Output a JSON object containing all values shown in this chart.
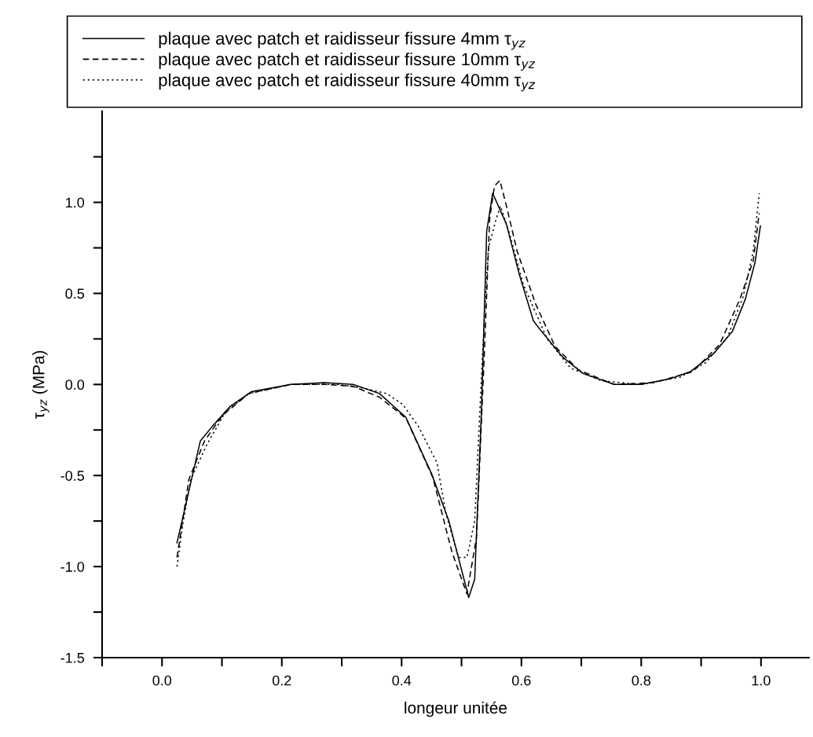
{
  "chart_data": {
    "type": "line",
    "xlabel": "longeur unitée",
    "ylabel": "τ$_{yz}$ (MPa)",
    "xlim": [
      -0.1,
      1.08
    ],
    "ylim": [
      -1.5,
      1.5
    ],
    "xticks": [
      {
        "value": -0.1,
        "label": null
      },
      {
        "value": 0,
        "label": "0.0"
      },
      {
        "value": 0.1,
        "label": null
      },
      0.2,
      {
        "value": 0.3,
        "label": null
      },
      0.4,
      {
        "value": 0.5,
        "label": null
      },
      0.6,
      {
        "value": 0.7,
        "label": null
      },
      0.8,
      {
        "value": 0.9,
        "label": null
      },
      {
        "value": 1,
        "label": "1.0"
      }
    ],
    "yticks": [
      -1.5,
      {
        "value": -1.25,
        "label": null
      },
      {
        "value": -1,
        "label": "-1.0"
      },
      {
        "value": -0.75,
        "label": null
      },
      -0.5,
      {
        "value": -0.25,
        "label": null
      },
      {
        "value": 0,
        "label": "0.0"
      },
      {
        "value": 0.25,
        "label": null
      },
      0.5,
      {
        "value": 0.75,
        "label": null
      },
      {
        "value": 1,
        "label": "1.0"
      },
      {
        "value": 1.25,
        "label": null
      }
    ],
    "grid": false,
    "legend": "top",
    "marker": "none",
    "series": [
      {
        "name": "plaque avec patch et raidisseur fissure 4mm τ$_{yz}$",
        "color": "#000000",
        "line_style": "solid",
        "x": [
          0.025,
          0.064,
          0.084,
          0.114,
          0.149,
          0.215,
          0.271,
          0.319,
          0.363,
          0.407,
          0.45,
          0.479,
          0.512,
          0.522,
          0.533,
          0.542,
          0.552,
          0.575,
          0.596,
          0.62,
          0.634,
          0.669,
          0.703,
          0.755,
          0.8,
          0.847,
          0.882,
          0.921,
          0.952,
          0.974,
          0.99,
          0.999
        ],
        "values": [
          -0.87,
          -0.31,
          -0.23,
          -0.12,
          -0.04,
          0.0,
          0.01,
          0.0,
          -0.05,
          -0.18,
          -0.49,
          -0.75,
          -1.17,
          -1.07,
          -0.17,
          0.84,
          1.05,
          0.88,
          0.61,
          0.35,
          0.29,
          0.15,
          0.06,
          0.0,
          0.0,
          0.03,
          0.07,
          0.17,
          0.29,
          0.47,
          0.67,
          0.87
        ]
      },
      {
        "name": "plaque avec patch et raidisseur fissure 10mm τ$_{yz}$",
        "color": "#000000",
        "line_style": "dashed",
        "x": [
          0.025,
          0.045,
          0.071,
          0.101,
          0.145,
          0.215,
          0.271,
          0.319,
          0.363,
          0.394,
          0.408,
          0.452,
          0.484,
          0.509,
          0.525,
          0.538,
          0.547,
          0.555,
          0.564,
          0.575,
          0.593,
          0.624,
          0.656,
          0.695,
          0.755,
          0.821,
          0.886,
          0.931,
          0.965,
          0.987,
          0.997
        ],
        "values": [
          -0.95,
          -0.52,
          -0.31,
          -0.17,
          -0.05,
          0.0,
          0.0,
          -0.01,
          -0.07,
          -0.15,
          -0.19,
          -0.51,
          -0.92,
          -1.15,
          -0.84,
          0.16,
          0.91,
          1.09,
          1.12,
          0.98,
          0.73,
          0.44,
          0.21,
          0.08,
          0.0,
          0.01,
          0.07,
          0.22,
          0.47,
          0.68,
          0.94
        ]
      },
      {
        "name": "plaque avec patch et raidisseur fissure 40mm τ$_{yz}$",
        "color": "#000000",
        "line_style": "dotted",
        "x": [
          0.025,
          0.035,
          0.048,
          0.075,
          0.106,
          0.145,
          0.215,
          0.293,
          0.336,
          0.375,
          0.402,
          0.428,
          0.459,
          0.474,
          0.495,
          0.509,
          0.522,
          0.535,
          0.545,
          0.558,
          0.565,
          0.58,
          0.603,
          0.643,
          0.682,
          0.734,
          0.8,
          0.865,
          0.908,
          0.944,
          0.97,
          0.987,
          0.997
        ],
        "values": [
          -1.0,
          -0.76,
          -0.52,
          -0.33,
          -0.15,
          -0.05,
          0.0,
          0.0,
          -0.02,
          -0.05,
          -0.11,
          -0.23,
          -0.43,
          -0.71,
          -0.95,
          -0.95,
          -0.75,
          0.16,
          0.75,
          0.91,
          0.98,
          0.83,
          0.55,
          0.25,
          0.09,
          0.02,
          0.0,
          0.04,
          0.12,
          0.26,
          0.48,
          0.73,
          1.05
        ]
      }
    ]
  }
}
